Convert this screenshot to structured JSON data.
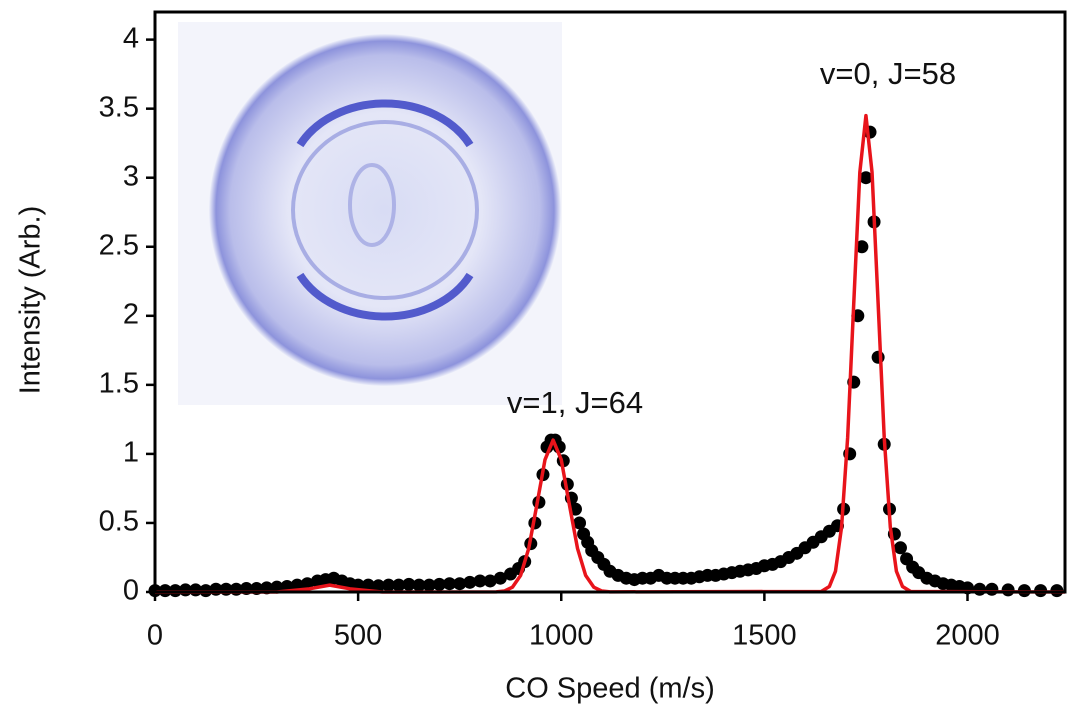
{
  "chart_data": {
    "type": "scatter",
    "xlabel": "CO Speed (m/s)",
    "ylabel": "Intensity (Arb.)",
    "annotations": [
      "v=1, J=64",
      "v=0, J=58"
    ],
    "xlim": [
      0,
      2240
    ],
    "ylim": [
      0,
      4.2
    ],
    "xticks": [
      0,
      500,
      1000,
      1500,
      2000
    ],
    "yticks": [
      0,
      0.5,
      1,
      1.5,
      2,
      2.5,
      3,
      3.5,
      4
    ],
    "series": [
      {
        "type": "scatter",
        "color": "#000000",
        "x": [
          0,
          25,
          50,
          75,
          100,
          125,
          150,
          175,
          200,
          225,
          250,
          275,
          300,
          325,
          350,
          375,
          400,
          420,
          440,
          460,
          480,
          500,
          525,
          550,
          575,
          600,
          625,
          650,
          675,
          700,
          725,
          750,
          775,
          800,
          825,
          850,
          875,
          895,
          910,
          925,
          935,
          945,
          955,
          965,
          975,
          985,
          995,
          1005,
          1015,
          1025,
          1035,
          1045,
          1055,
          1065,
          1075,
          1090,
          1105,
          1120,
          1140,
          1160,
          1180,
          1200,
          1220,
          1240,
          1260,
          1280,
          1300,
          1320,
          1340,
          1360,
          1380,
          1400,
          1420,
          1440,
          1460,
          1480,
          1500,
          1520,
          1540,
          1560,
          1580,
          1600,
          1620,
          1640,
          1660,
          1680,
          1695,
          1710,
          1720,
          1730,
          1740,
          1750,
          1760,
          1770,
          1780,
          1795,
          1808,
          1820,
          1835,
          1850,
          1865,
          1880,
          1900,
          1920,
          1940,
          1960,
          1980,
          2000,
          2030,
          2060,
          2100,
          2140,
          2180,
          2220
        ],
        "values": [
          0.01,
          0.01,
          0.01,
          0.015,
          0.015,
          0.01,
          0.02,
          0.02,
          0.02,
          0.025,
          0.025,
          0.03,
          0.035,
          0.04,
          0.05,
          0.06,
          0.08,
          0.09,
          0.1,
          0.08,
          0.06,
          0.05,
          0.05,
          0.045,
          0.05,
          0.05,
          0.055,
          0.05,
          0.05,
          0.055,
          0.06,
          0.06,
          0.07,
          0.08,
          0.08,
          0.1,
          0.13,
          0.17,
          0.22,
          0.35,
          0.5,
          0.65,
          0.85,
          1.05,
          1.1,
          1.1,
          1.05,
          0.95,
          0.78,
          0.68,
          0.6,
          0.5,
          0.42,
          0.36,
          0.3,
          0.25,
          0.2,
          0.15,
          0.12,
          0.1,
          0.09,
          0.1,
          0.1,
          0.12,
          0.1,
          0.1,
          0.1,
          0.1,
          0.11,
          0.12,
          0.12,
          0.13,
          0.14,
          0.15,
          0.16,
          0.17,
          0.19,
          0.2,
          0.22,
          0.25,
          0.28,
          0.32,
          0.36,
          0.4,
          0.44,
          0.48,
          0.6,
          1.0,
          1.52,
          2.0,
          2.5,
          3.0,
          3.33,
          2.68,
          1.7,
          1.07,
          0.6,
          0.42,
          0.32,
          0.24,
          0.18,
          0.14,
          0.1,
          0.08,
          0.06,
          0.05,
          0.04,
          0.03,
          0.02,
          0.02,
          0.015,
          0.01,
          0.01,
          0.01
        ]
      },
      {
        "type": "line",
        "color": "#e8141b",
        "x": [
          0,
          300,
          380,
          430,
          480,
          560,
          840,
          860,
          880,
          900,
          920,
          940,
          960,
          980,
          1000,
          1020,
          1040,
          1060,
          1080,
          1100,
          1120,
          1640,
          1660,
          1675,
          1690,
          1705,
          1720,
          1735,
          1750,
          1765,
          1780,
          1795,
          1810,
          1825,
          1840,
          1860,
          2240
        ],
        "values": [
          0,
          0,
          0.023,
          0.05,
          0.023,
          0,
          0.001,
          0.007,
          0.035,
          0.12,
          0.316,
          0.632,
          0.958,
          1.1,
          0.958,
          0.632,
          0.316,
          0.12,
          0.035,
          0.007,
          0.001,
          0.004,
          0.04,
          0.15,
          0.47,
          1.12,
          2.09,
          3.04,
          3.45,
          3.04,
          2.09,
          1.12,
          0.47,
          0.15,
          0.04,
          0.004,
          0
        ]
      }
    ]
  }
}
